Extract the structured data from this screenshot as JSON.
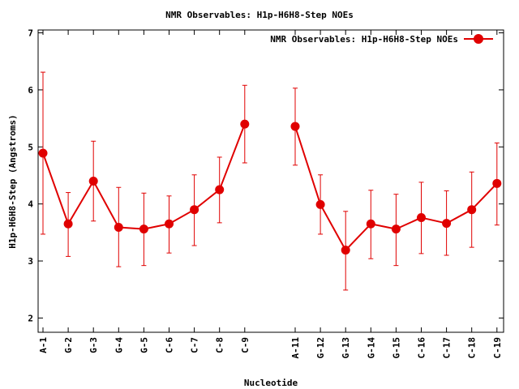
{
  "chart_data": {
    "type": "line",
    "title": "NMR Observables: H1p-H6H8-Step NOEs",
    "xlabel": "Nucleotide",
    "ylabel": "H1p-H6H8-Step (Angstroms)",
    "ylim": [
      1.75,
      7.05
    ],
    "yticks": [
      2,
      3,
      4,
      5,
      6,
      7
    ],
    "legend": {
      "label": "NMR Observables: H1p-H6H8-Step NOEs",
      "placement": "top-right"
    },
    "grid": false,
    "color": "#e00000",
    "categories": [
      "A-1",
      "G-2",
      "G-3",
      "G-4",
      "G-5",
      "C-6",
      "C-7",
      "C-8",
      "C-9",
      "",
      "A-11",
      "G-12",
      "G-13",
      "G-14",
      "G-15",
      "C-16",
      "C-17",
      "C-18",
      "C-19"
    ],
    "series": [
      {
        "name": "NMR Observables: H1p-H6H8-Step NOEs",
        "values": [
          4.89,
          3.65,
          4.4,
          3.59,
          3.56,
          3.65,
          3.9,
          4.25,
          5.4,
          null,
          5.36,
          3.99,
          3.19,
          3.65,
          3.56,
          3.76,
          3.66,
          3.9,
          4.36
        ],
        "error_low": [
          3.47,
          3.08,
          3.7,
          2.9,
          2.92,
          3.14,
          3.27,
          3.67,
          4.72,
          null,
          4.68,
          3.47,
          2.49,
          3.04,
          2.92,
          3.13,
          3.1,
          3.24,
          3.63
        ],
        "error_high": [
          6.31,
          4.2,
          5.1,
          4.29,
          4.19,
          4.14,
          4.51,
          4.82,
          6.08,
          null,
          6.03,
          4.51,
          3.87,
          4.24,
          4.17,
          4.38,
          4.23,
          4.56,
          5.07
        ]
      }
    ]
  }
}
